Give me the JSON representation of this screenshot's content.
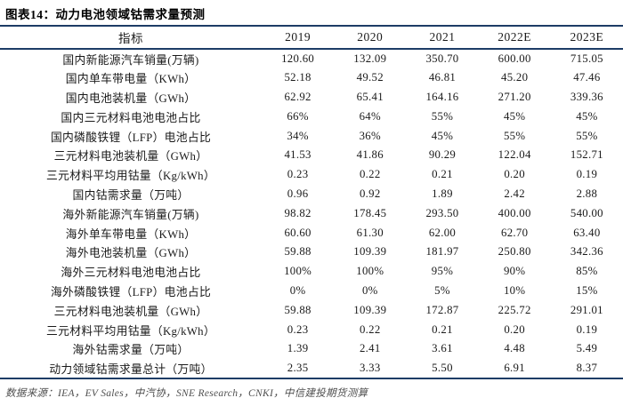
{
  "figure": {
    "title": "图表14：动力电池领域钴需求量预测"
  },
  "chart_data": {
    "type": "table",
    "title": "动力电池领域钴需求量预测",
    "columns": [
      "指标",
      "2019",
      "2020",
      "2021",
      "2022E",
      "2023E"
    ],
    "rows": [
      {
        "label": "国内新能源汽车销量(万辆)",
        "values": [
          "120.60",
          "132.09",
          "350.70",
          "600.00",
          "715.05"
        ]
      },
      {
        "label": "国内单车带电量（KWh）",
        "values": [
          "52.18",
          "49.52",
          "46.81",
          "45.20",
          "47.46"
        ]
      },
      {
        "label": "国内电池装机量（GWh）",
        "values": [
          "62.92",
          "65.41",
          "164.16",
          "271.20",
          "339.36"
        ]
      },
      {
        "label": "国内三元材料电池电池占比",
        "values": [
          "66%",
          "64%",
          "55%",
          "45%",
          "45%"
        ]
      },
      {
        "label": "国内磷酸铁锂（LFP）电池占比",
        "values": [
          "34%",
          "36%",
          "45%",
          "55%",
          "55%"
        ]
      },
      {
        "label": "三元材料电池装机量（GWh）",
        "values": [
          "41.53",
          "41.86",
          "90.29",
          "122.04",
          "152.71"
        ]
      },
      {
        "label": "三元材料平均用钴量（Kg/kWh）",
        "values": [
          "0.23",
          "0.22",
          "0.21",
          "0.20",
          "0.19"
        ]
      },
      {
        "label": "国内钴需求量（万吨）",
        "values": [
          "0.96",
          "0.92",
          "1.89",
          "2.42",
          "2.88"
        ]
      },
      {
        "label": "海外新能源汽车销量(万辆)",
        "values": [
          "98.82",
          "178.45",
          "293.50",
          "400.00",
          "540.00"
        ]
      },
      {
        "label": "海外单车带电量（KWh）",
        "values": [
          "60.60",
          "61.30",
          "62.00",
          "62.70",
          "63.40"
        ]
      },
      {
        "label": "海外电池装机量（GWh）",
        "values": [
          "59.88",
          "109.39",
          "181.97",
          "250.80",
          "342.36"
        ]
      },
      {
        "label": "海外三元材料电池电池占比",
        "values": [
          "100%",
          "100%",
          "95%",
          "90%",
          "85%"
        ]
      },
      {
        "label": "海外磷酸铁锂（LFP）电池占比",
        "values": [
          "0%",
          "0%",
          "5%",
          "10%",
          "15%"
        ]
      },
      {
        "label": "三元材料电池装机量（GWh）",
        "values": [
          "59.88",
          "109.39",
          "172.87",
          "225.72",
          "291.01"
        ]
      },
      {
        "label": "三元材料平均用钴量（Kg/kWh）",
        "values": [
          "0.23",
          "0.22",
          "0.21",
          "0.20",
          "0.19"
        ]
      },
      {
        "label": "海外钴需求量（万吨）",
        "values": [
          "1.39",
          "2.41",
          "3.61",
          "4.48",
          "5.49"
        ]
      },
      {
        "label": "动力领域钴需求量总计（万吨）",
        "values": [
          "2.35",
          "3.33",
          "5.50",
          "6.91",
          "8.37"
        ]
      }
    ]
  },
  "footer": {
    "source": "数据来源：IEA，EV Sales，中汽协，SNE Research，CNKI，中信建投期货测算"
  },
  "colors": {
    "rule": "#1d3c66",
    "title_text": "#000000",
    "body_text": "#1a1a1a",
    "source_text": "#4f4f4f",
    "background": "#ffffff"
  }
}
